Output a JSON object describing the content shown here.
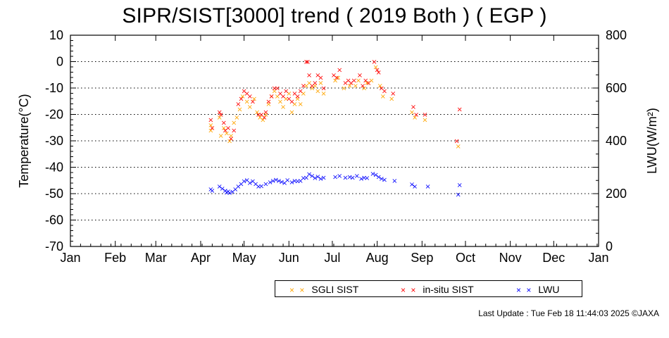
{
  "page": {
    "title": "SIPR/SIST[3000] trend ( 2019 Both ) ( EGP )",
    "last_update": "Last Update : Tue Feb 18 11:44:03 2025 ©JAXA"
  },
  "legend": {
    "items": [
      {
        "label": "SGLI SIST",
        "marker": "× ×",
        "color": "#ffa500"
      },
      {
        "label": "in-situ SIST",
        "marker": "× ×",
        "color": "#ff0000"
      },
      {
        "label": "LWU",
        "marker": "× ×",
        "color": "#0000ff"
      }
    ]
  },
  "chart_data": {
    "type": "scatter",
    "title": "SIPR/SIST[3000] trend ( 2019 Both ) ( EGP )",
    "ylabel": "Temperature(°C)",
    "y2label": "LWU(W/m²)",
    "x_tick_labels": [
      "Jan",
      "Feb",
      "Mar",
      "Apr",
      "May",
      "Jun",
      "Jul",
      "Aug",
      "Sep",
      "Oct",
      "Nov",
      "Dec",
      "Jan"
    ],
    "x_tick_days": [
      1,
      32,
      60,
      91,
      121,
      152,
      182,
      213,
      244,
      274,
      305,
      335,
      366
    ],
    "ylim": [
      -70,
      10
    ],
    "y_ticks": [
      10,
      0,
      -10,
      -20,
      -30,
      -40,
      -50,
      -60,
      -70
    ],
    "y2lim": [
      0,
      800
    ],
    "y2_ticks": [
      800,
      600,
      400,
      200,
      0
    ],
    "grid": "horizontal dotted at every 10°C",
    "legend_position": "bottom-right",
    "series": [
      {
        "name": "SGLI SIST",
        "color": "#ffa500",
        "axis": "left",
        "points": [
          {
            "x": "2019-04-08",
            "y": -26
          },
          {
            "x": "2019-04-08",
            "y": -24
          },
          {
            "x": "2019-04-14",
            "y": -21
          },
          {
            "x": "2019-04-15",
            "y": -28
          },
          {
            "x": "2019-04-17",
            "y": -25
          },
          {
            "x": "2019-04-19",
            "y": -27
          },
          {
            "x": "2019-04-21",
            "y": -30
          },
          {
            "x": "2019-04-22",
            "y": -28
          },
          {
            "x": "2019-04-24",
            "y": -23
          },
          {
            "x": "2019-04-26",
            "y": -21
          },
          {
            "x": "2019-04-28",
            "y": -18
          },
          {
            "x": "2019-04-30",
            "y": -13
          },
          {
            "x": "2019-05-03",
            "y": -15
          },
          {
            "x": "2019-05-05",
            "y": -17
          },
          {
            "x": "2019-05-08",
            "y": -14
          },
          {
            "x": "2019-05-10",
            "y": -19
          },
          {
            "x": "2019-05-12",
            "y": -21
          },
          {
            "x": "2019-05-14",
            "y": -22
          },
          {
            "x": "2019-05-16",
            "y": -20
          },
          {
            "x": "2019-05-18",
            "y": -16
          },
          {
            "x": "2019-05-20",
            "y": -13
          },
          {
            "x": "2019-05-22",
            "y": -11
          },
          {
            "x": "2019-05-24",
            "y": -13
          },
          {
            "x": "2019-05-26",
            "y": -15
          },
          {
            "x": "2019-05-28",
            "y": -17
          },
          {
            "x": "2019-05-30",
            "y": -14
          },
          {
            "x": "2019-06-01",
            "y": -12
          },
          {
            "x": "2019-06-03",
            "y": -19
          },
          {
            "x": "2019-06-05",
            "y": -16
          },
          {
            "x": "2019-06-07",
            "y": -14
          },
          {
            "x": "2019-06-09",
            "y": -16
          },
          {
            "x": "2019-06-11",
            "y": -12
          },
          {
            "x": "2019-06-13",
            "y": -9
          },
          {
            "x": "2019-06-15",
            "y": -8
          },
          {
            "x": "2019-06-17",
            "y": -10
          },
          {
            "x": "2019-06-19",
            "y": -9
          },
          {
            "x": "2019-06-21",
            "y": -11
          },
          {
            "x": "2019-06-23",
            "y": -8
          },
          {
            "x": "2019-06-25",
            "y": -12
          },
          {
            "x": "2019-07-03",
            "y": -7
          },
          {
            "x": "2019-07-05",
            "y": -6
          },
          {
            "x": "2019-07-09",
            "y": -10
          },
          {
            "x": "2019-07-13",
            "y": -9
          },
          {
            "x": "2019-07-17",
            "y": -9
          },
          {
            "x": "2019-07-19",
            "y": -7
          },
          {
            "x": "2019-07-23",
            "y": -10
          },
          {
            "x": "2019-07-25",
            "y": -8
          },
          {
            "x": "2019-07-28",
            "y": -7
          },
          {
            "x": "2019-07-31",
            "y": -2
          },
          {
            "x": "2019-08-03",
            "y": -9
          },
          {
            "x": "2019-08-05",
            "y": -13
          },
          {
            "x": "2019-08-11",
            "y": -14
          },
          {
            "x": "2019-08-25",
            "y": -19
          },
          {
            "x": "2019-08-27",
            "y": -21
          },
          {
            "x": "2019-09-03",
            "y": -22
          },
          {
            "x": "2019-09-26",
            "y": -32
          }
        ]
      },
      {
        "name": "in-situ SIST",
        "color": "#ff0000",
        "axis": "left",
        "points": [
          {
            "x": "2019-04-08",
            "y": -22
          },
          {
            "x": "2019-04-09",
            "y": -25
          },
          {
            "x": "2019-04-14",
            "y": -19
          },
          {
            "x": "2019-04-15",
            "y": -20
          },
          {
            "x": "2019-04-17",
            "y": -23
          },
          {
            "x": "2019-04-18",
            "y": -26
          },
          {
            "x": "2019-04-20",
            "y": -25
          },
          {
            "x": "2019-04-22",
            "y": -29
          },
          {
            "x": "2019-04-24",
            "y": -26
          },
          {
            "x": "2019-04-27",
            "y": -16
          },
          {
            "x": "2019-04-29",
            "y": -14
          },
          {
            "x": "2019-05-01",
            "y": -11
          },
          {
            "x": "2019-05-03",
            "y": -12
          },
          {
            "x": "2019-05-05",
            "y": -13
          },
          {
            "x": "2019-05-07",
            "y": -15
          },
          {
            "x": "2019-05-11",
            "y": -20
          },
          {
            "x": "2019-05-13",
            "y": -20
          },
          {
            "x": "2019-05-15",
            "y": -21
          },
          {
            "x": "2019-05-16",
            "y": -19
          },
          {
            "x": "2019-05-18",
            "y": -15
          },
          {
            "x": "2019-05-20",
            "y": -13
          },
          {
            "x": "2019-05-22",
            "y": -10
          },
          {
            "x": "2019-05-24",
            "y": -10
          },
          {
            "x": "2019-05-26",
            "y": -12
          },
          {
            "x": "2019-05-28",
            "y": -13
          },
          {
            "x": "2019-05-30",
            "y": -11
          },
          {
            "x": "2019-06-01",
            "y": -14
          },
          {
            "x": "2019-06-03",
            "y": -15
          },
          {
            "x": "2019-06-05",
            "y": -12
          },
          {
            "x": "2019-06-07",
            "y": -13
          },
          {
            "x": "2019-06-09",
            "y": -11
          },
          {
            "x": "2019-06-11",
            "y": -9
          },
          {
            "x": "2019-06-13",
            "y": 0
          },
          {
            "x": "2019-06-14",
            "y": 0
          },
          {
            "x": "2019-06-15",
            "y": -5
          },
          {
            "x": "2019-06-17",
            "y": -9
          },
          {
            "x": "2019-06-19",
            "y": -8
          },
          {
            "x": "2019-06-21",
            "y": -5
          },
          {
            "x": "2019-06-23",
            "y": -6
          },
          {
            "x": "2019-06-25",
            "y": -10
          },
          {
            "x": "2019-07-02",
            "y": -5
          },
          {
            "x": "2019-07-04",
            "y": -6
          },
          {
            "x": "2019-07-06",
            "y": -3
          },
          {
            "x": "2019-07-10",
            "y": -8
          },
          {
            "x": "2019-07-12",
            "y": -7
          },
          {
            "x": "2019-07-14",
            "y": -8
          },
          {
            "x": "2019-07-16",
            "y": -7
          },
          {
            "x": "2019-07-20",
            "y": -5
          },
          {
            "x": "2019-07-22",
            "y": -9
          },
          {
            "x": "2019-07-24",
            "y": -7
          },
          {
            "x": "2019-07-26",
            "y": -8
          },
          {
            "x": "2019-07-30",
            "y": 0
          },
          {
            "x": "2019-08-01",
            "y": -3
          },
          {
            "x": "2019-08-02",
            "y": -4
          },
          {
            "x": "2019-08-04",
            "y": -10
          },
          {
            "x": "2019-08-06",
            "y": -11
          },
          {
            "x": "2019-08-12",
            "y": -12
          },
          {
            "x": "2019-08-26",
            "y": -17
          },
          {
            "x": "2019-08-28",
            "y": -20
          },
          {
            "x": "2019-09-03",
            "y": -20
          },
          {
            "x": "2019-09-25",
            "y": -30
          },
          {
            "x": "2019-09-27",
            "y": -18
          }
        ]
      },
      {
        "name": "LWU",
        "color": "#0000ff",
        "axis": "right",
        "points": [
          {
            "x": "2019-04-08",
            "y": 218
          },
          {
            "x": "2019-04-09",
            "y": 212
          },
          {
            "x": "2019-04-14",
            "y": 228
          },
          {
            "x": "2019-04-16",
            "y": 220
          },
          {
            "x": "2019-04-18",
            "y": 212
          },
          {
            "x": "2019-04-19",
            "y": 206
          },
          {
            "x": "2019-04-20",
            "y": 210
          },
          {
            "x": "2019-04-21",
            "y": 204
          },
          {
            "x": "2019-04-23",
            "y": 208
          },
          {
            "x": "2019-04-25",
            "y": 218
          },
          {
            "x": "2019-04-27",
            "y": 228
          },
          {
            "x": "2019-04-29",
            "y": 238
          },
          {
            "x": "2019-05-01",
            "y": 248
          },
          {
            "x": "2019-05-03",
            "y": 252
          },
          {
            "x": "2019-05-05",
            "y": 242
          },
          {
            "x": "2019-05-07",
            "y": 248
          },
          {
            "x": "2019-05-09",
            "y": 238
          },
          {
            "x": "2019-05-11",
            "y": 228
          },
          {
            "x": "2019-05-13",
            "y": 230
          },
          {
            "x": "2019-05-16",
            "y": 238
          },
          {
            "x": "2019-05-19",
            "y": 244
          },
          {
            "x": "2019-05-21",
            "y": 250
          },
          {
            "x": "2019-05-23",
            "y": 254
          },
          {
            "x": "2019-05-25",
            "y": 250
          },
          {
            "x": "2019-05-27",
            "y": 246
          },
          {
            "x": "2019-05-29",
            "y": 242
          },
          {
            "x": "2019-05-31",
            "y": 252
          },
          {
            "x": "2019-06-03",
            "y": 244
          },
          {
            "x": "2019-06-05",
            "y": 250
          },
          {
            "x": "2019-06-07",
            "y": 248
          },
          {
            "x": "2019-06-09",
            "y": 250
          },
          {
            "x": "2019-06-11",
            "y": 260
          },
          {
            "x": "2019-06-13",
            "y": 262
          },
          {
            "x": "2019-06-15",
            "y": 275
          },
          {
            "x": "2019-06-17",
            "y": 268
          },
          {
            "x": "2019-06-19",
            "y": 260
          },
          {
            "x": "2019-06-21",
            "y": 265
          },
          {
            "x": "2019-06-23",
            "y": 257
          },
          {
            "x": "2019-06-25",
            "y": 262
          },
          {
            "x": "2019-07-03",
            "y": 264
          },
          {
            "x": "2019-07-06",
            "y": 268
          },
          {
            "x": "2019-07-10",
            "y": 262
          },
          {
            "x": "2019-07-13",
            "y": 264
          },
          {
            "x": "2019-07-15",
            "y": 262
          },
          {
            "x": "2019-07-18",
            "y": 268
          },
          {
            "x": "2019-07-21",
            "y": 258
          },
          {
            "x": "2019-07-23",
            "y": 262
          },
          {
            "x": "2019-07-25",
            "y": 260
          },
          {
            "x": "2019-07-29",
            "y": 276
          },
          {
            "x": "2019-07-31",
            "y": 272
          },
          {
            "x": "2019-08-02",
            "y": 264
          },
          {
            "x": "2019-08-04",
            "y": 258
          },
          {
            "x": "2019-08-06",
            "y": 254
          },
          {
            "x": "2019-08-13",
            "y": 250
          },
          {
            "x": "2019-08-25",
            "y": 236
          },
          {
            "x": "2019-08-27",
            "y": 228
          },
          {
            "x": "2019-09-05",
            "y": 228
          },
          {
            "x": "2019-09-26",
            "y": 198
          },
          {
            "x": "2019-09-27",
            "y": 234
          }
        ]
      }
    ]
  }
}
